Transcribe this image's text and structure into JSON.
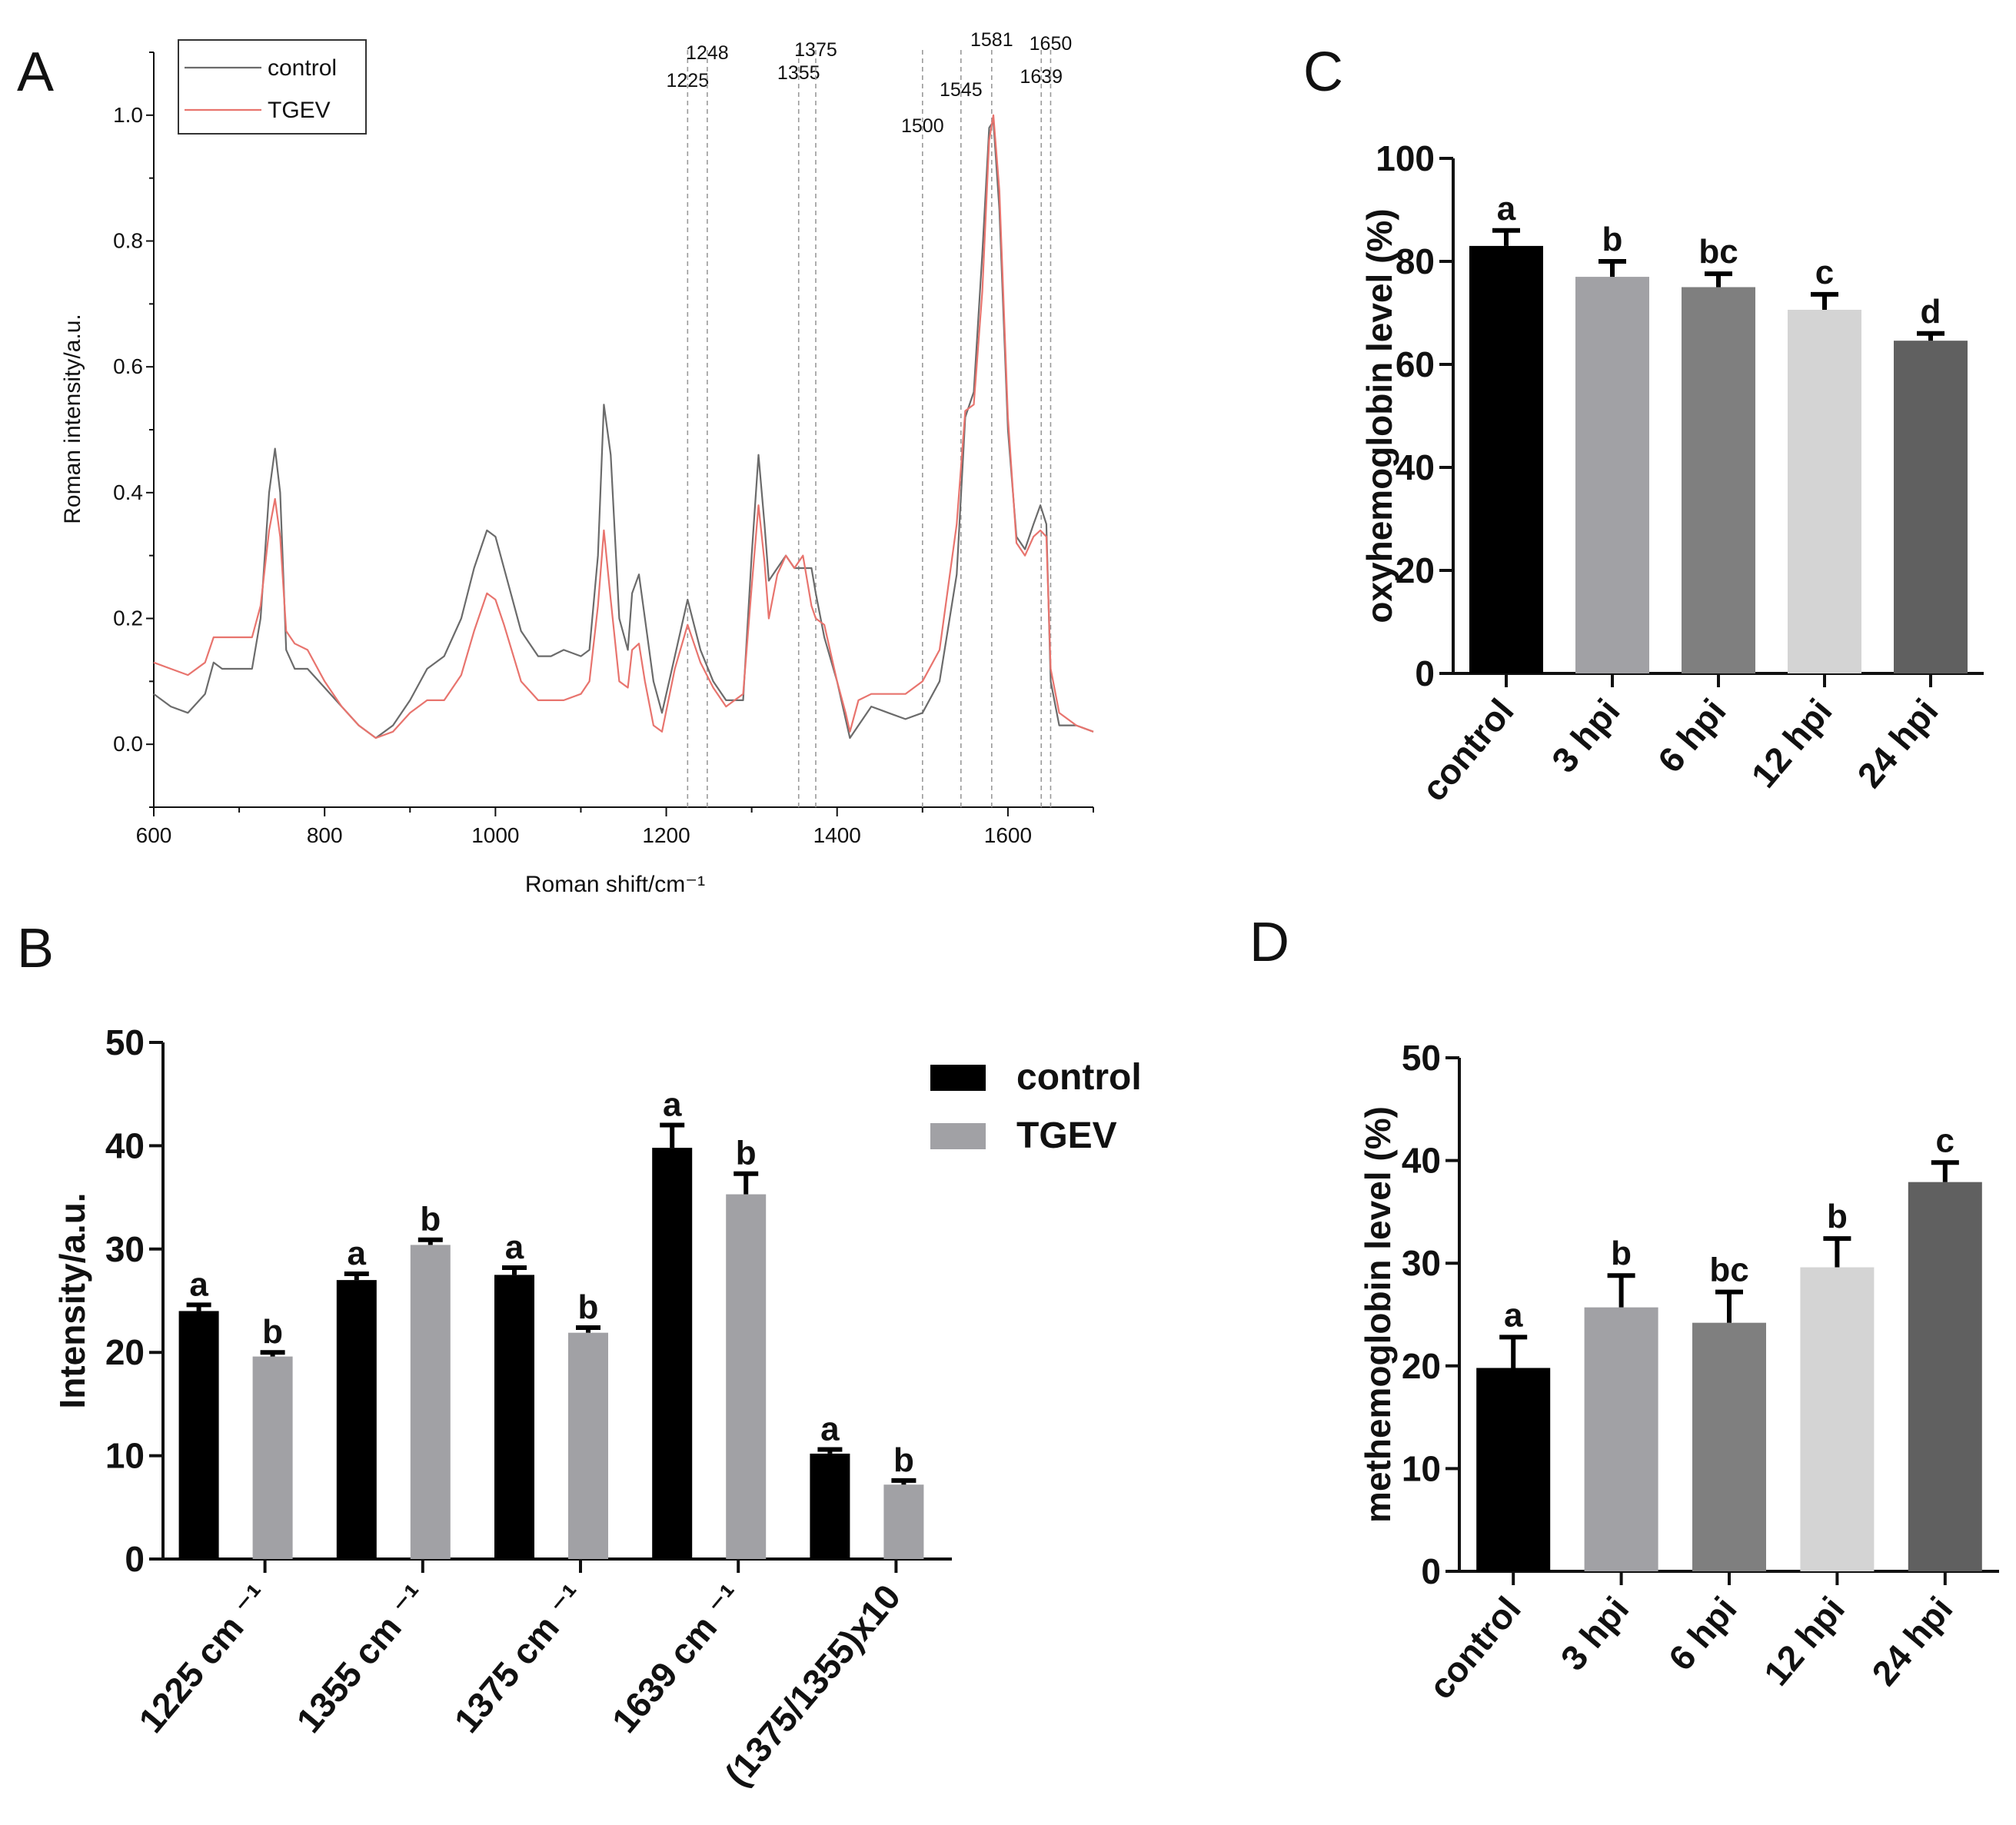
{
  "panels": {
    "A": "A",
    "B": "B",
    "C": "C",
    "D": "D"
  },
  "chart_data": [
    {
      "id": "A",
      "type": "line",
      "xlabel": "Roman shift/cm⁻¹",
      "ylabel": "Roman intensity/a.u.",
      "xlim": [
        600,
        1700
      ],
      "ylim": [
        -0.1,
        1.1
      ],
      "xticks": [
        600,
        800,
        1000,
        1200,
        1400,
        1600
      ],
      "yticks": [
        "0.0",
        "0.2",
        "0.4",
        "0.6",
        "0.8",
        "1.0"
      ],
      "legend": {
        "position": "top-left",
        "entries": [
          "control",
          "TGEV"
        ]
      },
      "colors": {
        "control": "#6b6b6b",
        "TGEV": "#e8746e",
        "marker_line": "#9a9a9a"
      },
      "marker_lines": [
        {
          "x": 1225,
          "label": "1225"
        },
        {
          "x": 1248,
          "label": "1248"
        },
        {
          "x": 1355,
          "label": "1355"
        },
        {
          "x": 1375,
          "label": "1375"
        },
        {
          "x": 1500,
          "label": "1500"
        },
        {
          "x": 1545,
          "label": "1545"
        },
        {
          "x": 1581,
          "label": "1581"
        },
        {
          "x": 1639,
          "label": "1639"
        },
        {
          "x": 1650,
          "label": "1650"
        }
      ],
      "series": [
        {
          "name": "control",
          "x": [
            600,
            620,
            640,
            660,
            670,
            680,
            700,
            715,
            725,
            735,
            742,
            748,
            755,
            765,
            780,
            800,
            820,
            840,
            860,
            880,
            900,
            920,
            940,
            960,
            975,
            990,
            1000,
            1010,
            1030,
            1050,
            1065,
            1080,
            1100,
            1110,
            1120,
            1127,
            1135,
            1145,
            1155,
            1160,
            1168,
            1175,
            1185,
            1195,
            1210,
            1225,
            1240,
            1255,
            1270,
            1290,
            1300,
            1308,
            1315,
            1320,
            1330,
            1340,
            1350,
            1360,
            1370,
            1375,
            1385,
            1400,
            1410,
            1415,
            1425,
            1440,
            1460,
            1480,
            1500,
            1520,
            1540,
            1550,
            1560,
            1570,
            1578,
            1583,
            1590,
            1600,
            1610,
            1620,
            1630,
            1638,
            1645,
            1650,
            1660,
            1680,
            1700
          ],
          "y": [
            0.08,
            0.06,
            0.05,
            0.08,
            0.13,
            0.12,
            0.12,
            0.12,
            0.2,
            0.4,
            0.47,
            0.4,
            0.15,
            0.12,
            0.12,
            0.09,
            0.06,
            0.03,
            0.01,
            0.03,
            0.07,
            0.12,
            0.14,
            0.2,
            0.28,
            0.34,
            0.33,
            0.28,
            0.18,
            0.14,
            0.14,
            0.15,
            0.14,
            0.15,
            0.3,
            0.54,
            0.46,
            0.2,
            0.15,
            0.24,
            0.27,
            0.2,
            0.1,
            0.05,
            0.14,
            0.23,
            0.15,
            0.1,
            0.07,
            0.07,
            0.3,
            0.46,
            0.35,
            0.26,
            0.28,
            0.3,
            0.28,
            0.28,
            0.28,
            0.24,
            0.17,
            0.1,
            0.04,
            0.01,
            0.03,
            0.06,
            0.05,
            0.04,
            0.05,
            0.1,
            0.27,
            0.52,
            0.56,
            0.78,
            0.98,
            0.99,
            0.85,
            0.5,
            0.33,
            0.31,
            0.35,
            0.38,
            0.35,
            0.1,
            0.03,
            0.03,
            0.02
          ]
        },
        {
          "name": "TGEV",
          "x": [
            600,
            620,
            640,
            660,
            670,
            680,
            700,
            715,
            725,
            735,
            742,
            748,
            755,
            765,
            780,
            800,
            820,
            840,
            860,
            880,
            900,
            920,
            940,
            960,
            975,
            990,
            1000,
            1010,
            1030,
            1050,
            1065,
            1080,
            1100,
            1110,
            1120,
            1127,
            1135,
            1145,
            1155,
            1160,
            1168,
            1175,
            1185,
            1195,
            1210,
            1225,
            1240,
            1255,
            1270,
            1290,
            1300,
            1308,
            1315,
            1320,
            1330,
            1340,
            1350,
            1360,
            1370,
            1375,
            1385,
            1400,
            1410,
            1415,
            1425,
            1440,
            1460,
            1480,
            1500,
            1520,
            1540,
            1550,
            1560,
            1570,
            1578,
            1583,
            1590,
            1600,
            1610,
            1620,
            1630,
            1638,
            1645,
            1650,
            1660,
            1680,
            1700
          ],
          "y": [
            0.13,
            0.12,
            0.11,
            0.13,
            0.17,
            0.17,
            0.17,
            0.17,
            0.22,
            0.34,
            0.39,
            0.33,
            0.18,
            0.16,
            0.15,
            0.1,
            0.06,
            0.03,
            0.01,
            0.02,
            0.05,
            0.07,
            0.07,
            0.11,
            0.18,
            0.24,
            0.23,
            0.19,
            0.1,
            0.07,
            0.07,
            0.07,
            0.08,
            0.1,
            0.22,
            0.34,
            0.23,
            0.1,
            0.09,
            0.15,
            0.16,
            0.1,
            0.03,
            0.02,
            0.12,
            0.19,
            0.13,
            0.09,
            0.06,
            0.08,
            0.25,
            0.38,
            0.29,
            0.2,
            0.27,
            0.3,
            0.28,
            0.3,
            0.22,
            0.2,
            0.19,
            0.1,
            0.05,
            0.02,
            0.07,
            0.08,
            0.08,
            0.08,
            0.1,
            0.15,
            0.35,
            0.53,
            0.54,
            0.72,
            0.96,
            1.0,
            0.88,
            0.52,
            0.32,
            0.3,
            0.33,
            0.34,
            0.33,
            0.12,
            0.05,
            0.03,
            0.02
          ]
        }
      ]
    },
    {
      "id": "B",
      "type": "bar",
      "ylabel": "Intensity/a.u.",
      "ylim": [
        0,
        50
      ],
      "yticks": [
        "0",
        "10",
        "20",
        "30",
        "40",
        "50"
      ],
      "categories": [
        "1225 cm ⁻¹",
        "1355 cm ⁻¹",
        "1375 cm ⁻¹",
        "1639 cm ⁻¹",
        "(1375/1355)x10"
      ],
      "legend": {
        "position": "top-right",
        "entries": [
          "control",
          "TGEV"
        ]
      },
      "colors": {
        "control": "#000000",
        "TGEV": "#a1a1a5"
      },
      "series": [
        {
          "name": "control",
          "values": [
            24.0,
            27.0,
            27.5,
            39.8,
            10.2
          ],
          "errors": [
            0.6,
            0.6,
            0.7,
            2.2,
            0.4
          ],
          "labels": [
            "a",
            "a",
            "a",
            "a",
            "a"
          ]
        },
        {
          "name": "TGEV",
          "values": [
            19.6,
            30.4,
            21.9,
            35.3,
            7.2
          ],
          "errors": [
            0.4,
            0.5,
            0.5,
            2.0,
            0.4
          ],
          "labels": [
            "b",
            "b",
            "b",
            "b",
            "b"
          ]
        }
      ]
    },
    {
      "id": "C",
      "type": "bar",
      "ylabel": "oxyhemoglobin level (%)",
      "ylim": [
        0,
        100
      ],
      "yticks": [
        "0",
        "20",
        "40",
        "60",
        "80",
        "100"
      ],
      "categories": [
        "control",
        "3 hpi",
        "6 hpi",
        "12 hpi",
        "24 hpi"
      ],
      "values": [
        83.0,
        77.0,
        75.0,
        70.6,
        64.6
      ],
      "errors": [
        3.0,
        3.0,
        2.6,
        3.0,
        1.4
      ],
      "labels": [
        "a",
        "b",
        "bc",
        "c",
        "d"
      ],
      "colors": [
        "#000000",
        "#a1a1a5",
        "#7f7f7f",
        "#d4d4d4",
        "#606060"
      ]
    },
    {
      "id": "D",
      "type": "bar",
      "ylabel": "methemoglobin level (%)",
      "ylim": [
        0,
        50
      ],
      "yticks": [
        "0",
        "10",
        "20",
        "30",
        "40",
        "50"
      ],
      "categories": [
        "control",
        "3 hpi",
        "6 hpi",
        "12 hpi",
        "24 hpi"
      ],
      "values": [
        19.8,
        25.7,
        24.2,
        29.6,
        37.9
      ],
      "errors": [
        3.0,
        3.1,
        3.0,
        2.8,
        1.9
      ],
      "labels": [
        "a",
        "b",
        "bc",
        "b",
        "c"
      ],
      "colors": [
        "#000000",
        "#a1a1a5",
        "#7f7f7f",
        "#d4d4d4",
        "#606060"
      ]
    }
  ]
}
